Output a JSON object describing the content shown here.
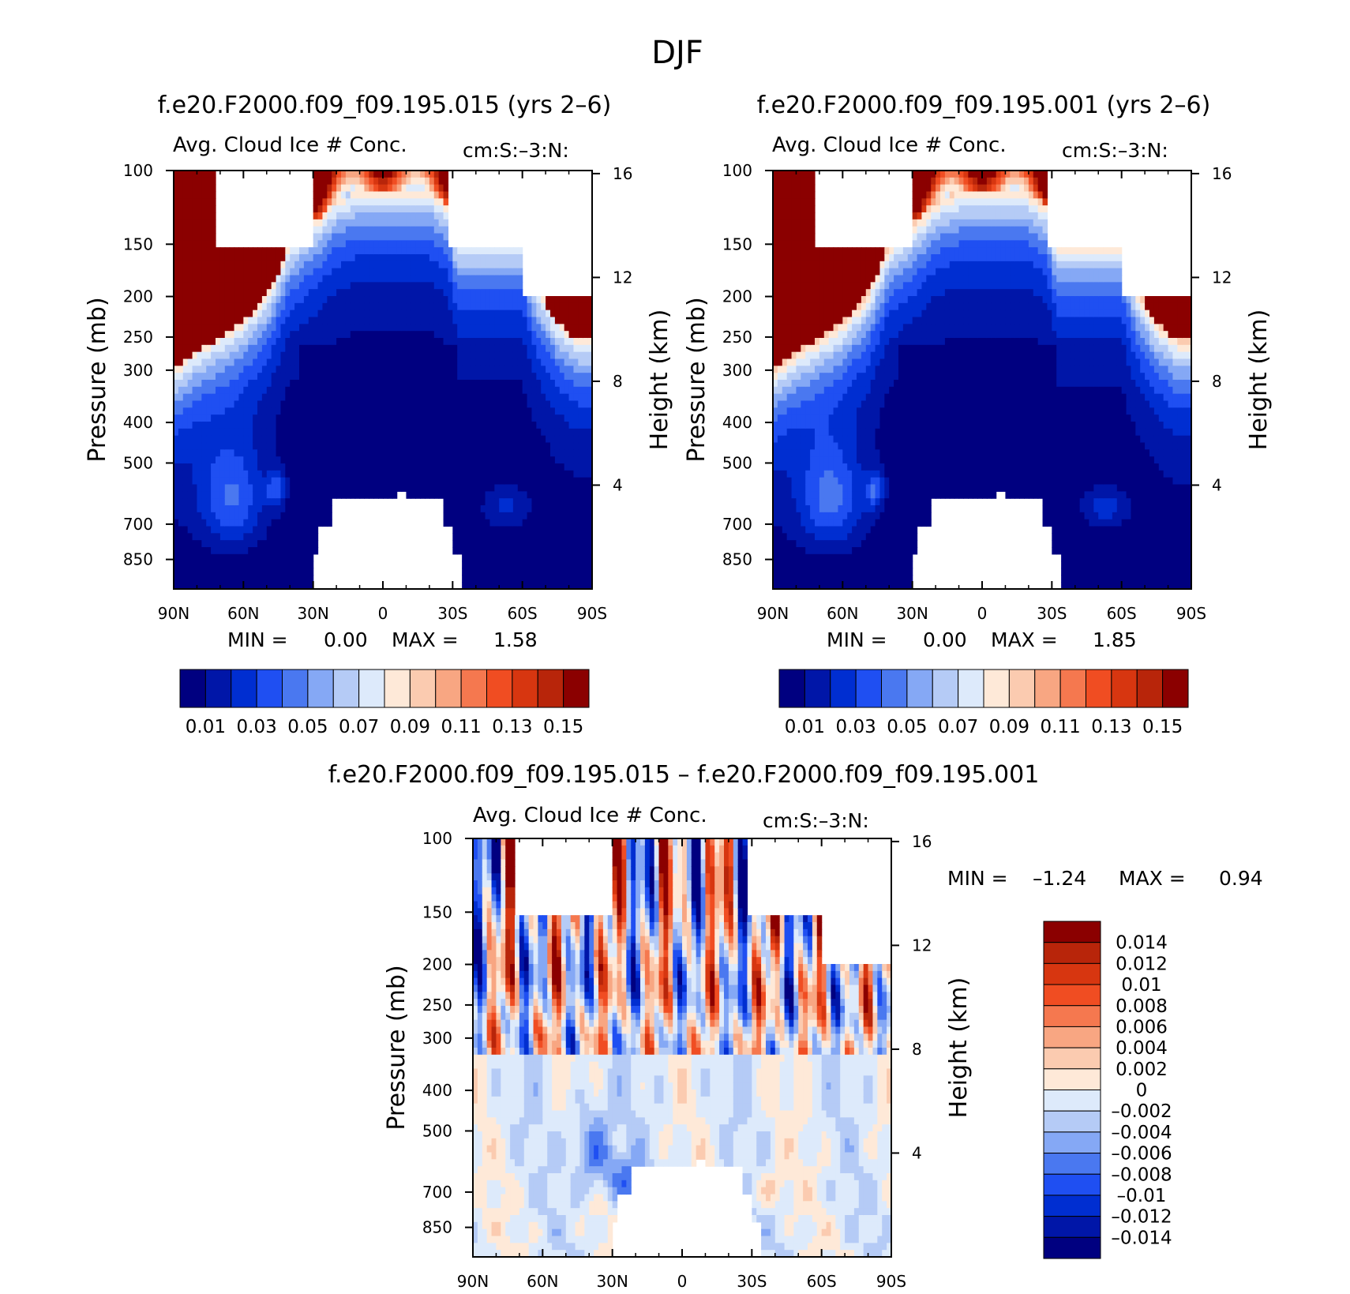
{
  "figure": {
    "title": "DJF"
  },
  "colors": {
    "missing": "#ffffff",
    "frame": "#000000"
  },
  "chart_data": [
    {
      "type": "heatmap",
      "panel": "top-left",
      "case_title": "f.e20.F2000.f09_f09.195.015 (yrs 2–6)",
      "variable": "Avg. Cloud Ice # Conc.",
      "units": "cm:S:–3:N:",
      "xlabel": "",
      "ylabel": "Pressure (mb)",
      "y2label": "Height (km)",
      "x_ticks": [
        "90N",
        "60N",
        "30N",
        "0",
        "30S",
        "60S",
        "90S"
      ],
      "x_tick_values": [
        90,
        60,
        30,
        0,
        -30,
        -60,
        -90
      ],
      "xlim": [
        90,
        -90
      ],
      "y_ticks": [
        "100",
        "150",
        "200",
        "250",
        "300",
        "400",
        "500",
        "700",
        "850"
      ],
      "y_tick_values": [
        100,
        150,
        200,
        250,
        300,
        400,
        500,
        700,
        850
      ],
      "ylim": [
        100,
        1000
      ],
      "y_scale": "log",
      "y2_ticks": [
        "16",
        "12",
        "8",
        "4"
      ],
      "y2_tick_values": [
        16,
        12,
        8,
        4
      ],
      "min_label": "MIN =",
      "min_value": "0.00",
      "max_label": "MAX =",
      "max_value": "1.58",
      "colorbar": {
        "orientation": "horizontal",
        "labels": [
          "0.01",
          "0.03",
          "0.05",
          "0.07",
          "0.09",
          "0.11",
          "0.13",
          "0.15"
        ],
        "levels": [
          0.01,
          0.02,
          0.03,
          0.04,
          0.05,
          0.06,
          0.07,
          0.08,
          0.09,
          0.1,
          0.11,
          0.12,
          0.13,
          0.14,
          0.15
        ],
        "colors": [
          "#000080",
          "#0016a8",
          "#002ed1",
          "#1f4ff2",
          "#4a78f0",
          "#85a8f5",
          "#b5cbf6",
          "#ddeafb",
          "#fee9d8",
          "#fbcbb0",
          "#f8a682",
          "#f5784f",
          "#f04d22",
          "#d73610",
          "#b8250a",
          "#8b0000"
        ]
      }
    },
    {
      "type": "heatmap",
      "panel": "top-right",
      "case_title": "f.e20.F2000.f09_f09.195.001 (yrs 2–6)",
      "variable": "Avg. Cloud Ice # Conc.",
      "units": "cm:S:–3:N:",
      "xlabel": "",
      "ylabel": "Pressure (mb)",
      "y2label": "Height (km)",
      "x_ticks": [
        "90N",
        "60N",
        "30N",
        "0",
        "30S",
        "60S",
        "90S"
      ],
      "x_tick_values": [
        90,
        60,
        30,
        0,
        -30,
        -60,
        -90
      ],
      "xlim": [
        90,
        -90
      ],
      "y_ticks": [
        "100",
        "150",
        "200",
        "250",
        "300",
        "400",
        "500",
        "700",
        "850"
      ],
      "y_tick_values": [
        100,
        150,
        200,
        250,
        300,
        400,
        500,
        700,
        850
      ],
      "ylim": [
        100,
        1000
      ],
      "y_scale": "log",
      "y2_ticks": [
        "16",
        "12",
        "8",
        "4"
      ],
      "y2_tick_values": [
        16,
        12,
        8,
        4
      ],
      "min_label": "MIN =",
      "min_value": "0.00",
      "max_label": "MAX =",
      "max_value": "1.85",
      "colorbar": {
        "orientation": "horizontal",
        "labels": [
          "0.01",
          "0.03",
          "0.05",
          "0.07",
          "0.09",
          "0.11",
          "0.13",
          "0.15"
        ],
        "levels": [
          0.01,
          0.02,
          0.03,
          0.04,
          0.05,
          0.06,
          0.07,
          0.08,
          0.09,
          0.1,
          0.11,
          0.12,
          0.13,
          0.14,
          0.15
        ],
        "colors": [
          "#000080",
          "#0016a8",
          "#002ed1",
          "#1f4ff2",
          "#4a78f0",
          "#85a8f5",
          "#b5cbf6",
          "#ddeafb",
          "#fee9d8",
          "#fbcbb0",
          "#f8a682",
          "#f5784f",
          "#f04d22",
          "#d73610",
          "#b8250a",
          "#8b0000"
        ]
      }
    },
    {
      "type": "heatmap",
      "panel": "bottom",
      "case_title": "f.e20.F2000.f09_f09.195.015 – f.e20.F2000.f09_f09.195.001",
      "variable": "Avg. Cloud Ice # Conc.",
      "units": "cm:S:–3:N:",
      "xlabel": "",
      "ylabel": "Pressure (mb)",
      "y2label": "Height (km)",
      "x_ticks": [
        "90N",
        "60N",
        "30N",
        "0",
        "30S",
        "60S",
        "90S"
      ],
      "x_tick_values": [
        90,
        60,
        30,
        0,
        -30,
        -60,
        -90
      ],
      "xlim": [
        90,
        -90
      ],
      "y_ticks": [
        "100",
        "150",
        "200",
        "250",
        "300",
        "400",
        "500",
        "700",
        "850"
      ],
      "y_tick_values": [
        100,
        150,
        200,
        250,
        300,
        400,
        500,
        700,
        850
      ],
      "ylim": [
        100,
        1000
      ],
      "y_scale": "log",
      "y2_ticks": [
        "16",
        "12",
        "8",
        "4"
      ],
      "y2_tick_values": [
        16,
        12,
        8,
        4
      ],
      "min_label": "MIN =",
      "min_value": "–1.24",
      "max_label": "MAX =",
      "max_value": "0.94",
      "colorbar": {
        "orientation": "vertical",
        "labels": [
          "0.014",
          "0.012",
          "0.01",
          "0.008",
          "0.006",
          "0.004",
          "0.002",
          "0",
          "–0.002",
          "–0.004",
          "–0.006",
          "–0.008",
          "–0.01",
          "–0.012",
          "–0.014"
        ],
        "levels": [
          0.014,
          0.012,
          0.01,
          0.008,
          0.006,
          0.004,
          0.002,
          0,
          -0.002,
          -0.004,
          -0.006,
          -0.008,
          -0.01,
          -0.012,
          -0.014
        ],
        "colors": [
          "#8b0000",
          "#b8250a",
          "#d73610",
          "#f04d22",
          "#f5784f",
          "#f8a682",
          "#fbcbb0",
          "#fee9d8",
          "#ddeafb",
          "#b5cbf6",
          "#85a8f5",
          "#4a78f0",
          "#1f4ff2",
          "#002ed1",
          "#0016a8",
          "#000080"
        ]
      }
    }
  ]
}
